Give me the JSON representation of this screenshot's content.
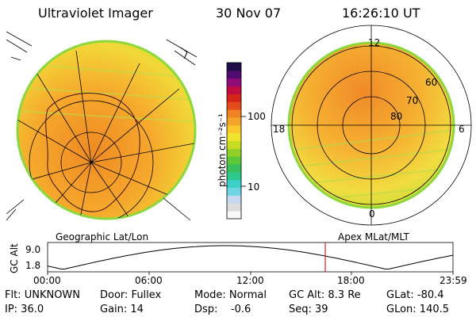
{
  "header": {
    "instrument": "Ultraviolet Imager",
    "date": "30 Nov 07",
    "time": "16:26:10 UT"
  },
  "colorbar": {
    "unit_label": "photon cm⁻²s⁻¹",
    "tick_100": "100",
    "tick_10": "10",
    "colors": [
      "#f8f8f8",
      "#dcdcdc",
      "#c8d8f0",
      "#6fd4e4",
      "#3cd0c8",
      "#2cc88c",
      "#38c05c",
      "#5cc838",
      "#90d028",
      "#c8dc20",
      "#f0e42c",
      "#f8c82c",
      "#f4a428",
      "#f08424",
      "#e44c1c",
      "#d42418",
      "#c00c40",
      "#900c78",
      "#500c70",
      "#200c48"
    ]
  },
  "left_panel": {
    "label": "Geographic Lat/Lon"
  },
  "right_panel": {
    "label": "Apex MLat/MLT",
    "mlt_labels": {
      "top": "12",
      "left": "18",
      "right": "6",
      "bottom": "0"
    },
    "lat_labels": [
      "60",
      "70",
      "80"
    ]
  },
  "altitude_plot": {
    "ylabel": "GC Alt",
    "ymax": "9.0",
    "ymin": "1.8",
    "x_ticks": [
      "00:00",
      "06:00",
      "12:00",
      "18:00",
      "23:59"
    ],
    "current_time_hour": 16.44
  },
  "info": {
    "row1": {
      "flt": "Flt: UNKNOWN",
      "door": "Door: Fullex",
      "mode": "Mode: Normal",
      "gcalt": "GC Alt: 8.3 Re",
      "glat": "GLat: -80.4"
    },
    "row2": {
      "ip": "IP: 36.0",
      "gain": "Gain: 14",
      "dsp": "Dsp:    -0.6",
      "seq": "Seq: 39",
      "glon": "GLon: 140.5"
    }
  }
}
